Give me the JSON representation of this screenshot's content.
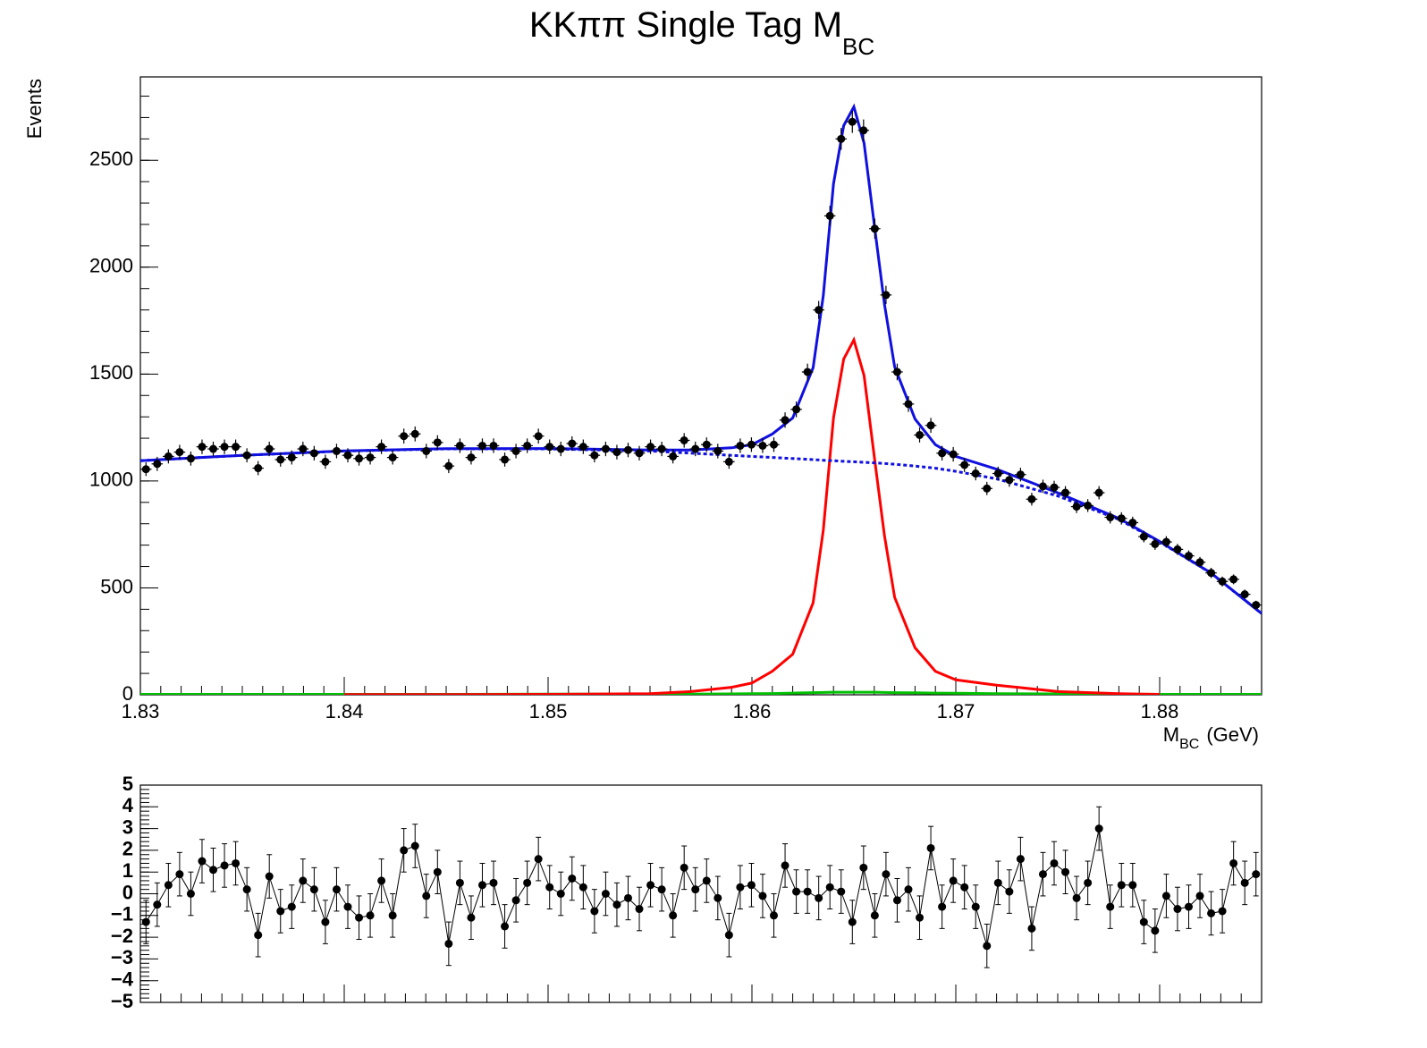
{
  "chart_data": [
    {
      "type": "histogram",
      "title": "KKππ Single Tag M",
      "title_subscript": "BC",
      "y_label": "Events",
      "x_label": "M",
      "x_label_subscript": "BC",
      "x_label_suffix": "(GeV)",
      "xlim": [
        1.83,
        1.885
      ],
      "xticks": [
        1.83,
        1.84,
        1.85,
        1.86,
        1.87,
        1.88
      ],
      "ylim": [
        0,
        2890
      ],
      "yticks": [
        0,
        500,
        1000,
        1500,
        2000,
        2500
      ],
      "color": "#000000",
      "bins": [
        1.83,
        1.83055,
        1.8311,
        1.83165,
        1.8322,
        1.83275,
        1.8333,
        1.83385,
        1.8344,
        1.83495,
        1.8355,
        1.83605,
        1.8366,
        1.83715,
        1.8377,
        1.83825,
        1.8388,
        1.83935,
        1.8399,
        1.84045,
        1.841,
        1.84155,
        1.8421,
        1.84265,
        1.8432,
        1.84375,
        1.8443,
        1.84485,
        1.8454,
        1.84595,
        1.8465,
        1.84705,
        1.8476,
        1.84815,
        1.8487,
        1.84925,
        1.8498,
        1.85035,
        1.8509,
        1.85145,
        1.852,
        1.85255,
        1.8531,
        1.85365,
        1.8542,
        1.85475,
        1.8553,
        1.85585,
        1.8564,
        1.85695,
        1.8575,
        1.85805,
        1.8586,
        1.85915,
        1.8597,
        1.86025,
        1.8608,
        1.86135,
        1.8619,
        1.86245,
        1.863,
        1.86355,
        1.8641,
        1.86465,
        1.8652,
        1.86575,
        1.8663,
        1.86685,
        1.8674,
        1.86795,
        1.8685,
        1.86905,
        1.8696,
        1.87015,
        1.8707,
        1.87125,
        1.8718,
        1.87235,
        1.8729,
        1.87345,
        1.874,
        1.87455,
        1.8751,
        1.87565,
        1.8762,
        1.87675,
        1.8773,
        1.87785,
        1.8784,
        1.87895,
        1.8795,
        1.88005,
        1.8806,
        1.88115,
        1.8817,
        1.88225,
        1.8828,
        1.88335,
        1.8839,
        1.88445,
        1.885
      ],
      "values": [
        1055,
        1080,
        1115,
        1135,
        1105,
        1160,
        1150,
        1160,
        1160,
        1120,
        1060,
        1150,
        1100,
        1110,
        1150,
        1130,
        1090,
        1140,
        1120,
        1105,
        1110,
        1160,
        1110,
        1210,
        1220,
        1140,
        1180,
        1070,
        1165,
        1110,
        1165,
        1165,
        1100,
        1140,
        1165,
        1210,
        1160,
        1150,
        1175,
        1160,
        1120,
        1150,
        1135,
        1145,
        1130,
        1160,
        1150,
        1115,
        1190,
        1150,
        1170,
        1140,
        1090,
        1165,
        1170,
        1165,
        1170,
        1285,
        1335,
        1510,
        1800,
        2240,
        2600,
        2680,
        2640,
        2180,
        1870,
        1510,
        1360,
        1215,
        1260,
        1130,
        1125,
        1075,
        1035,
        965,
        1035,
        1005,
        1030,
        915,
        975,
        970,
        945,
        880,
        885,
        945,
        830,
        825,
        805,
        740,
        705,
        715,
        680,
        650,
        620,
        570,
        530,
        540,
        470,
        420
      ],
      "errors": [
        32,
        33,
        33,
        34,
        33,
        34,
        34,
        34,
        34,
        33,
        33,
        34,
        33,
        33,
        34,
        34,
        33,
        34,
        33,
        33,
        33,
        34,
        33,
        35,
        35,
        34,
        34,
        33,
        34,
        33,
        34,
        34,
        33,
        34,
        34,
        35,
        34,
        34,
        34,
        34,
        33,
        34,
        34,
        34,
        34,
        34,
        34,
        33,
        34,
        34,
        34,
        34,
        33,
        34,
        34,
        34,
        34,
        36,
        37,
        39,
        42,
        47,
        51,
        52,
        51,
        47,
        43,
        39,
        37,
        35,
        35,
        34,
        34,
        33,
        32,
        31,
        32,
        32,
        32,
        30,
        31,
        31,
        31,
        30,
        30,
        31,
        29,
        29,
        28,
        27,
        27,
        27,
        26,
        25,
        25,
        24,
        23,
        23,
        22,
        20
      ],
      "curves": [
        {
          "color": "#00c000",
          "x": [
            1.83,
            1.835,
            1.84,
            1.845,
            1.85,
            1.855,
            1.857,
            1.859,
            1.86,
            1.861,
            1.862,
            1.863,
            1.8635,
            1.864,
            1.8645,
            1.865,
            1.8655,
            1.866,
            1.8665,
            1.867,
            1.868,
            1.869,
            1.87,
            1.872,
            1.875,
            1.878,
            1.88,
            1.8825,
            1.885
          ],
          "values": [
            2,
            2,
            2,
            2,
            3,
            3,
            3,
            4,
            5,
            6,
            8,
            10,
            11,
            12,
            12,
            12,
            12,
            12,
            11,
            10,
            9,
            8,
            7,
            5,
            4,
            3,
            2,
            2,
            2
          ]
        },
        {
          "color": "#ff0000",
          "x": [
            1.84,
            1.845,
            1.85,
            1.855,
            1.857,
            1.859,
            1.86,
            1.861,
            1.862,
            1.863,
            1.8635,
            1.864,
            1.8645,
            1.865,
            1.8655,
            1.866,
            1.8665,
            1.867,
            1.868,
            1.869,
            1.87,
            1.872,
            1.875,
            1.878,
            1.88
          ],
          "values": [
            1,
            1,
            2,
            5,
            15,
            35,
            55,
            110,
            190,
            430,
            770,
            1295,
            1570,
            1660,
            1493,
            1115,
            745,
            456,
            220,
            110,
            70,
            45,
            15,
            5,
            2
          ]
        },
        {
          "color": "#1010e0",
          "dashed": true,
          "x": [
            1.83,
            1.835,
            1.84,
            1.845,
            1.85,
            1.855,
            1.857,
            1.859,
            1.86,
            1.861,
            1.862,
            1.863,
            1.8635,
            1.864,
            1.8645,
            1.865,
            1.8655,
            1.866,
            1.8665,
            1.867,
            1.868,
            1.869,
            1.87,
            1.872,
            1.875,
            1.878,
            1.88,
            1.8825,
            1.885
          ],
          "values": [
            1095,
            1120,
            1140,
            1150,
            1150,
            1140,
            1130,
            1120,
            1115,
            1110,
            1105,
            1100,
            1097,
            1095,
            1092,
            1090,
            1087,
            1085,
            1082,
            1078,
            1070,
            1060,
            1045,
            1010,
            930,
            820,
            715,
            570,
            380
          ]
        },
        {
          "color": "#1010e0",
          "x": [
            1.83,
            1.835,
            1.84,
            1.845,
            1.85,
            1.855,
            1.857,
            1.859,
            1.86,
            1.861,
            1.862,
            1.863,
            1.8635,
            1.864,
            1.8645,
            1.865,
            1.8655,
            1.866,
            1.8665,
            1.867,
            1.868,
            1.869,
            1.87,
            1.872,
            1.875,
            1.878,
            1.88,
            1.8825,
            1.885
          ],
          "values": [
            1095,
            1120,
            1141,
            1151,
            1152,
            1145,
            1145,
            1155,
            1170,
            1220,
            1295,
            1530,
            1867,
            2390,
            2662,
            2750,
            2580,
            2200,
            1827,
            1534,
            1290,
            1170,
            1115,
            1055,
            945,
            825,
            717,
            571,
            380
          ]
        }
      ]
    },
    {
      "type": "line",
      "xlim": [
        1.83,
        1.885
      ],
      "ylim": [
        -5,
        5
      ],
      "yticks": [
        {
          "value": -5,
          "label": "−5"
        },
        {
          "value": -4,
          "label": "−4"
        },
        {
          "value": -3,
          "label": "−3"
        },
        {
          "value": -2,
          "label": "−2"
        },
        {
          "value": -1,
          "label": "−1"
        },
        0,
        1,
        2,
        3,
        4,
        5
      ],
      "color": "#000000",
      "error": 1,
      "values": [
        -1.3,
        -0.5,
        0.4,
        0.9,
        0,
        1.5,
        1.1,
        1.3,
        1.4,
        0.2,
        -1.9,
        0.8,
        -0.8,
        -0.6,
        0.6,
        0.2,
        -1.3,
        0.2,
        -0.6,
        -1.1,
        -1.0,
        0.6,
        -1.0,
        2.0,
        2.2,
        -0.1,
        1.0,
        -2.3,
        0.5,
        -1.1,
        0.4,
        0.5,
        -1.5,
        -0.3,
        0.5,
        1.6,
        0.3,
        0,
        0.7,
        0.3,
        -0.8,
        0,
        -0.5,
        -0.2,
        -0.7,
        0.4,
        0.2,
        -1.0,
        1.2,
        0.2,
        0.6,
        -0.2,
        -1.9,
        0.3,
        0.4,
        -0.1,
        -1.0,
        1.3,
        0.1,
        0.1,
        -0.2,
        0.3,
        0.1,
        -1.3,
        1.2,
        -1.0,
        0.9,
        -0.3,
        0.2,
        -1.1,
        2.1,
        -0.6,
        0.6,
        0.3,
        -0.6,
        -2.4,
        0.5,
        0.1,
        1.6,
        -1.6,
        0.9,
        1.4,
        1.0,
        -0.2,
        0.5,
        3.0,
        -0.6,
        0.4,
        0.4,
        -1.3,
        -1.7,
        -0.1,
        -0.7,
        -0.6,
        -0.1,
        -0.9,
        -0.8,
        1.4,
        0.5,
        0.9
      ]
    }
  ]
}
